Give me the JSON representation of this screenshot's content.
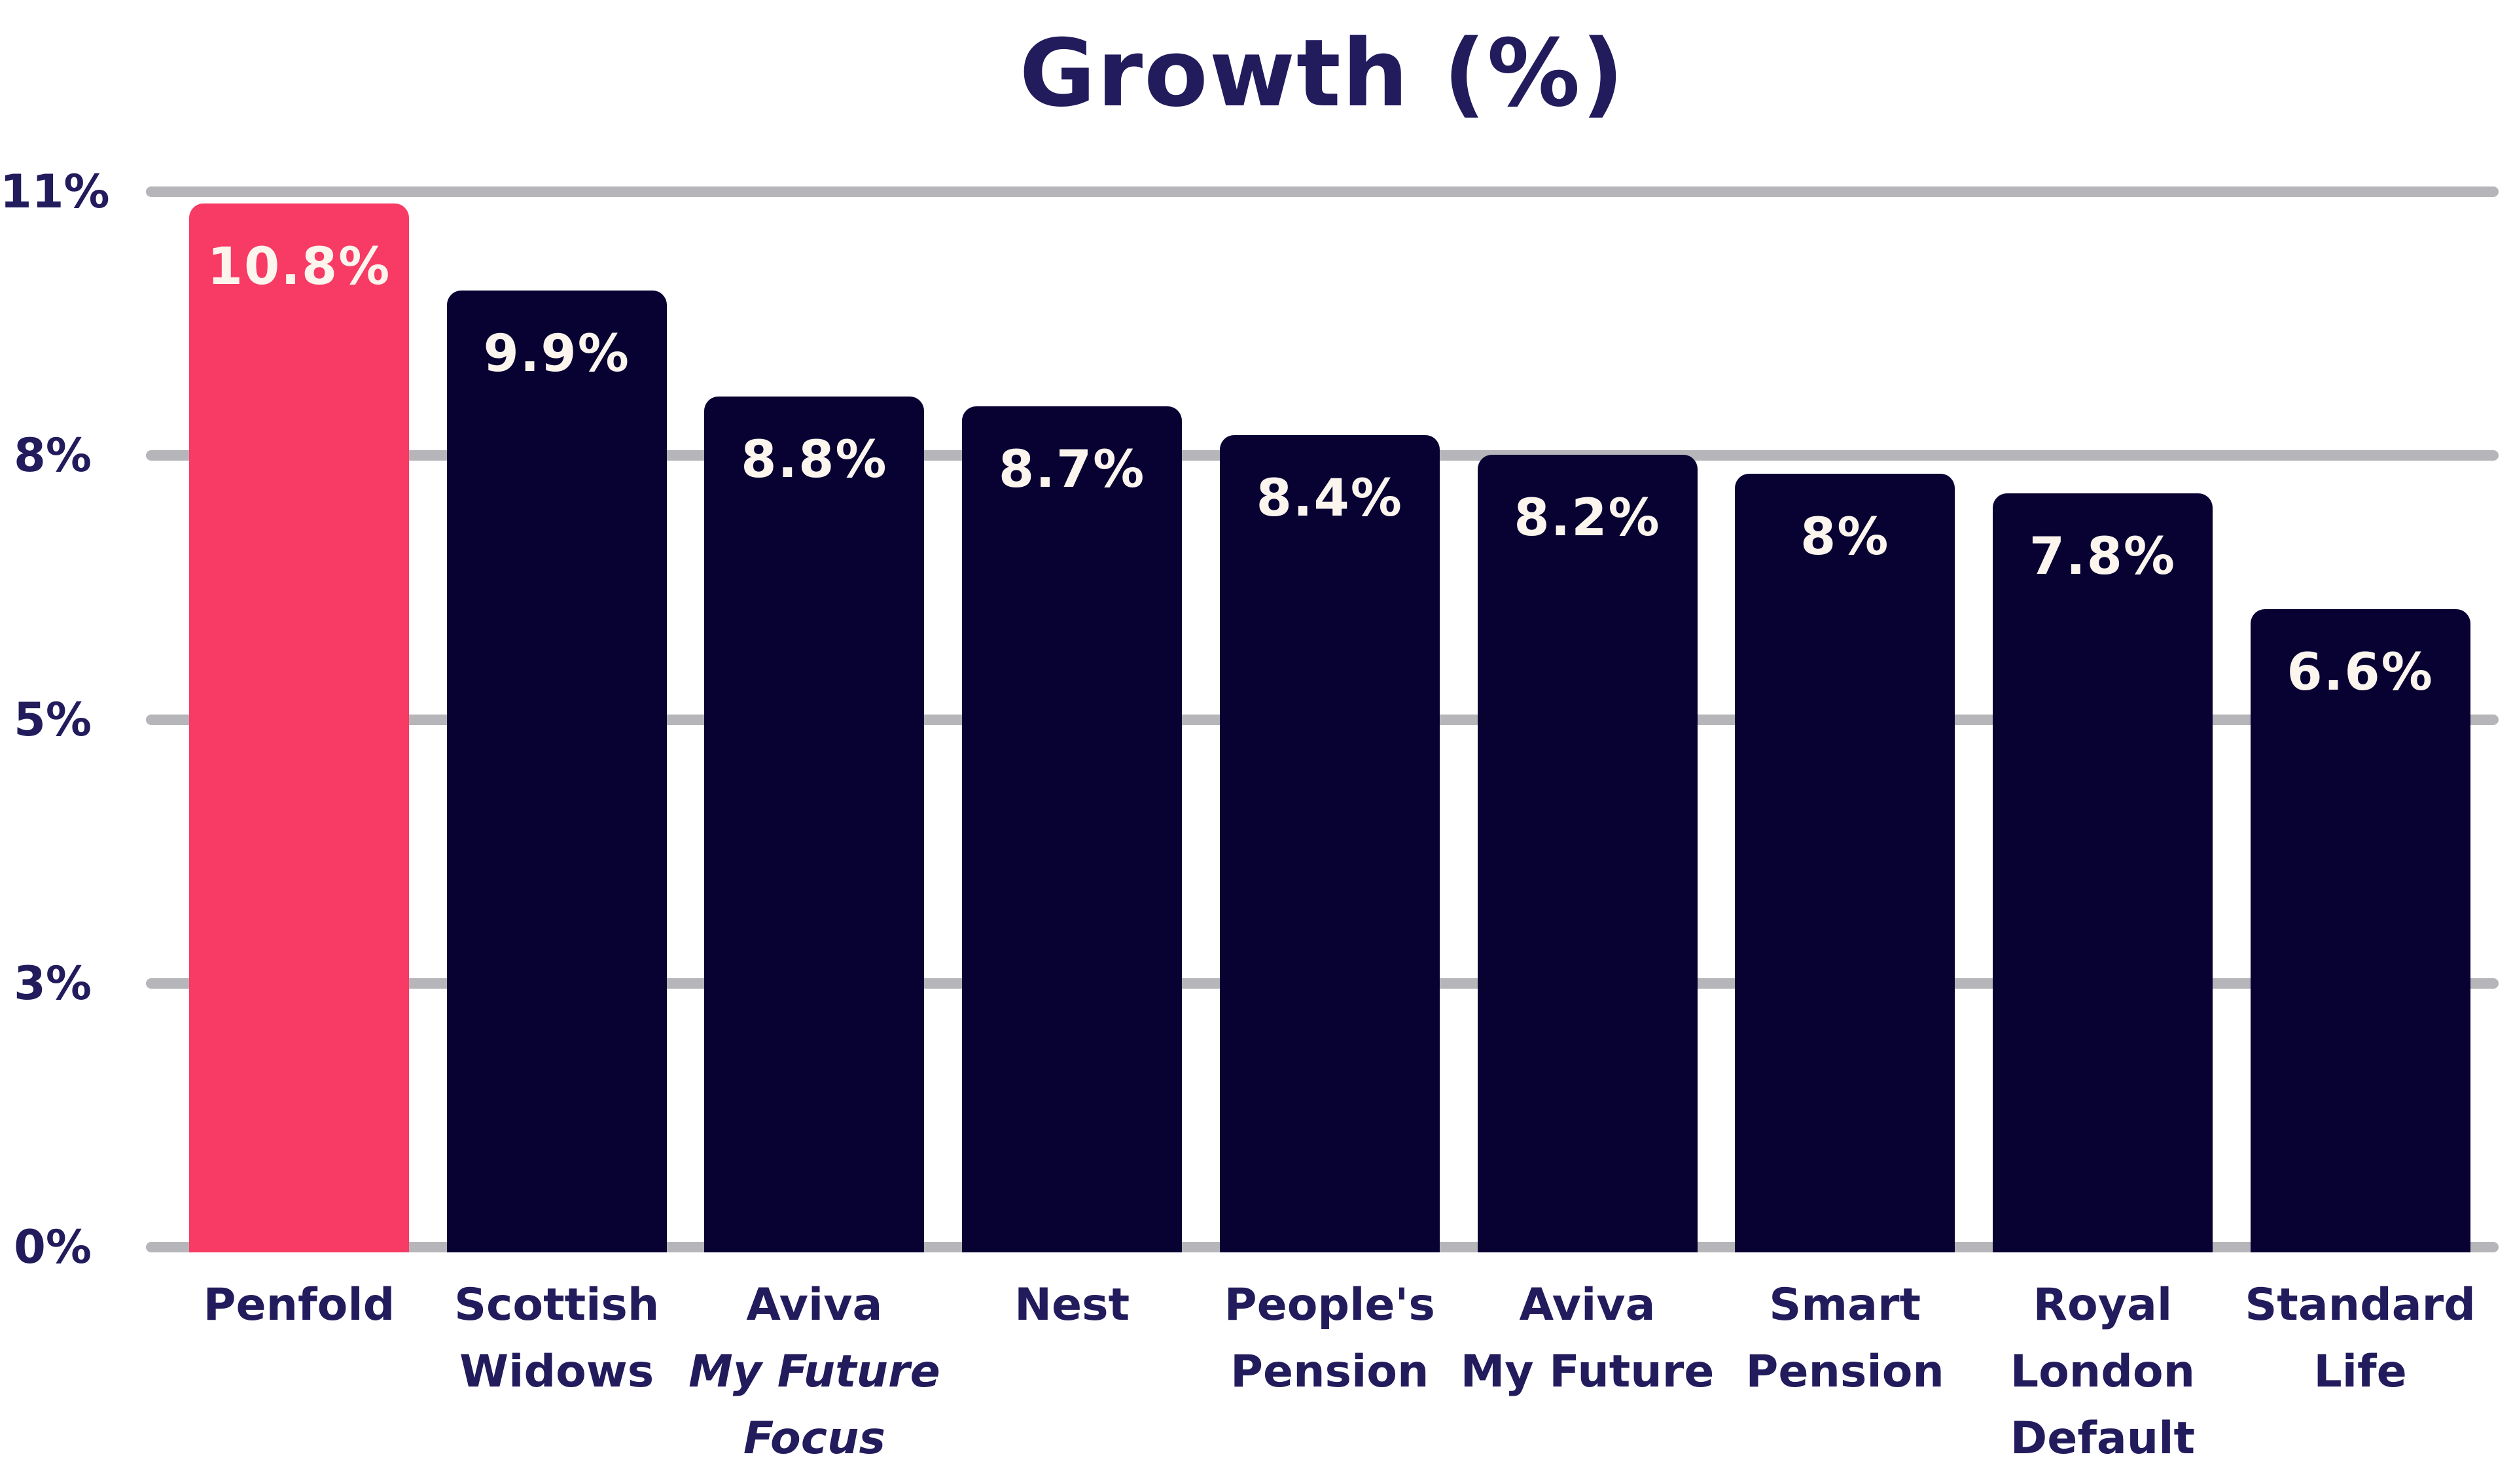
{
  "chart_data": {
    "type": "bar",
    "title": "Growth (%)",
    "xlabel": "",
    "ylabel": "",
    "ylim": [
      0,
      11
    ],
    "grid": "horizontal",
    "legend": "none",
    "ytick_labels": [
      "11%",
      "8%",
      "5%",
      "3%",
      "0%"
    ],
    "categories": [
      "Penfold",
      "Scottish Widows",
      "Aviva My Future Focus",
      "Nest",
      "People's Pension",
      "Aviva My Future",
      "Smart Pension",
      "Royal London Default",
      "Standard Life"
    ],
    "values": [
      10.8,
      9.9,
      8.8,
      8.7,
      8.4,
      8.2,
      8.0,
      7.8,
      6.6
    ],
    "bars": [
      {
        "name": "penfold",
        "value": 10.8,
        "display_value": "10.8%",
        "highlight": true,
        "label_lines": [
          {
            "text": "Penfold",
            "italic": false
          }
        ]
      },
      {
        "name": "scottish-widows",
        "value": 9.9,
        "display_value": "9.9%",
        "highlight": false,
        "label_lines": [
          {
            "text": "Scottish",
            "italic": false
          },
          {
            "text": "Widows",
            "italic": false
          }
        ]
      },
      {
        "name": "aviva-my-future-focus",
        "value": 8.8,
        "display_value": "8.8%",
        "highlight": false,
        "label_lines": [
          {
            "text": "Aviva",
            "italic": false
          },
          {
            "text": "My Future",
            "italic": true
          },
          {
            "text": "Focus",
            "italic": true
          }
        ]
      },
      {
        "name": "nest",
        "value": 8.7,
        "display_value": "8.7%",
        "highlight": false,
        "label_lines": [
          {
            "text": "Nest",
            "italic": false
          }
        ]
      },
      {
        "name": "peoples-pension",
        "value": 8.4,
        "display_value": "8.4%",
        "highlight": false,
        "label_lines": [
          {
            "text": "People's",
            "italic": false
          },
          {
            "text": "Pension",
            "italic": false
          }
        ]
      },
      {
        "name": "aviva-my-future",
        "value": 8.2,
        "display_value": "8.2%",
        "highlight": false,
        "label_lines": [
          {
            "text": "Aviva",
            "italic": false
          },
          {
            "text": "My Future",
            "italic": false
          }
        ]
      },
      {
        "name": "smart-pension",
        "value": 8.0,
        "display_value": "8%",
        "highlight": false,
        "label_lines": [
          {
            "text": "Smart",
            "italic": false
          },
          {
            "text": "Pension",
            "italic": false
          }
        ]
      },
      {
        "name": "royal-london-default",
        "value": 7.8,
        "display_value": "7.8%",
        "highlight": false,
        "label_lines": [
          {
            "text": "Royal London",
            "italic": false
          },
          {
            "text": "Default",
            "italic": false
          }
        ]
      },
      {
        "name": "standard-life",
        "value": 6.6,
        "display_value": "6.6%",
        "highlight": false,
        "label_lines": [
          {
            "text": "Standard",
            "italic": false
          },
          {
            "text": "Life",
            "italic": false
          }
        ]
      }
    ],
    "colors": {
      "highlight_bar": "#F73B64",
      "bar": "#080233",
      "grid": "#B6B5B9",
      "axis_text": "#221B5C",
      "value_text": "#FBF5EE",
      "background": "#FFFFFF"
    }
  }
}
